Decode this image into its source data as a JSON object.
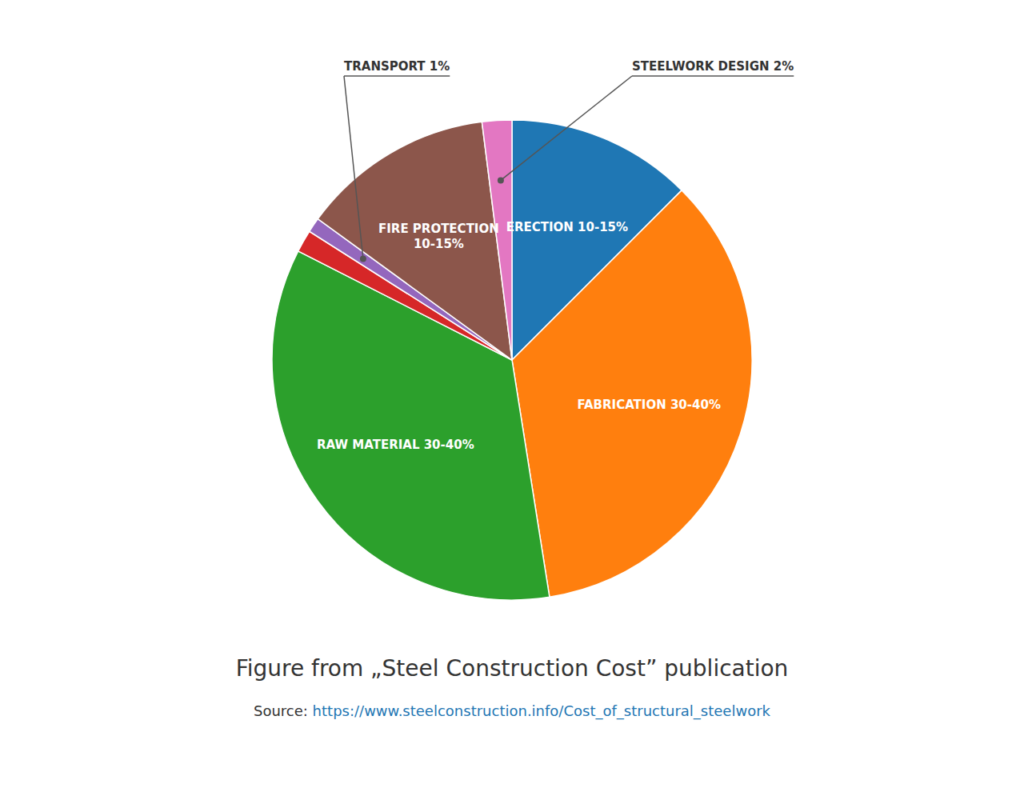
{
  "chart_data": {
    "type": "pie",
    "title": "Figure from „Steel Construction Cost” publication",
    "categories": [
      "ERECTION 10-15%",
      "FABRICATION 30-40%",
      "RAW MATERIAL 30-40%",
      null,
      "TRANSPORT 1%",
      "FIRE PROTECTION\n10-15%",
      "STEELWORK DESIGN 2%"
    ],
    "values": [
      12.5,
      35,
      35,
      1.5,
      1.0,
      13,
      2
    ],
    "annotations": [
      "Source: ",
      "https://www.steelconstruction.info/Cost_of_structural_steelwork"
    ]
  }
}
